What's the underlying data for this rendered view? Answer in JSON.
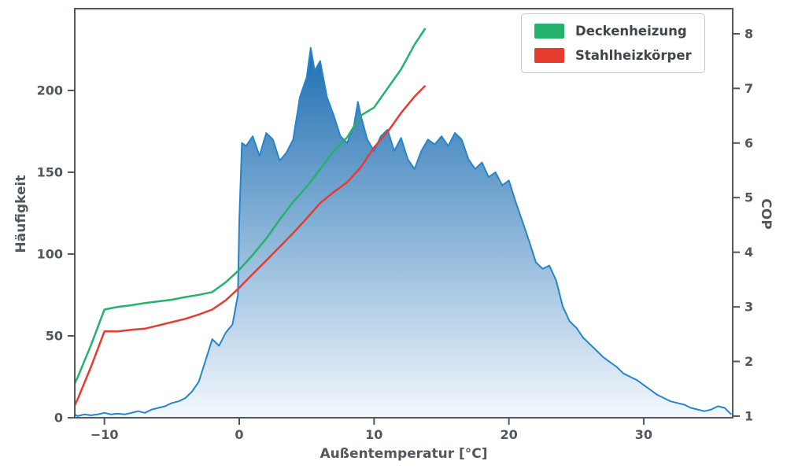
{
  "chart_data": {
    "type": "area+line",
    "title": "",
    "xlabel": "Außentemperatur [°C]",
    "ylabel_left": "Häufigkeit",
    "ylabel_right": "COP",
    "xlim": [
      -12.2,
      36.6
    ],
    "ylim_left": [
      0,
      250
    ],
    "ylim_right": [
      0.97,
      8.46
    ],
    "grid": false,
    "legend_position": "upper right",
    "x_tick_values": [
      -10,
      0,
      10,
      20,
      30
    ],
    "x_tick_labels": [
      "−10",
      "0",
      "10",
      "20",
      "30"
    ],
    "yleft_tick_values": [
      0,
      50,
      100,
      150,
      200
    ],
    "yleft_tick_labels": [
      "0",
      "50",
      "100",
      "150",
      "200"
    ],
    "yright_tick_values": [
      1,
      2,
      3,
      4,
      5,
      6,
      7,
      8
    ],
    "yright_tick_labels": [
      "1",
      "2",
      "3",
      "4",
      "5",
      "6",
      "7",
      "8"
    ],
    "colors": {
      "spine": "#51575d",
      "text": "#51575d",
      "legend_border": "#c9c9c9"
    },
    "histogram": {
      "name": "Häufigkeit",
      "axis": "left",
      "line_color": "#2585cc",
      "fill_top": "#1f6fb2",
      "fill_bottom": "#f3f8fd",
      "x": [
        -12.2,
        -12,
        -11.5,
        -11,
        -10.5,
        -10,
        -9.5,
        -9,
        -8.5,
        -8,
        -7.5,
        -7,
        -6.5,
        -6,
        -5.5,
        -5,
        -4.5,
        -4,
        -3.5,
        -3,
        -2.5,
        -2,
        -1.5,
        -1,
        -0.5,
        -0.1,
        0,
        0.2,
        0.5,
        1,
        1.5,
        2,
        2.5,
        3,
        3.5,
        4,
        4.5,
        5,
        5.3,
        5.6,
        6,
        6.5,
        7,
        7.5,
        8,
        8.5,
        8.8,
        9,
        9.5,
        10,
        10.5,
        11,
        11.5,
        12,
        12.5,
        13,
        13.5,
        14,
        14.5,
        15,
        15.5,
        16,
        16.5,
        17,
        17.5,
        18,
        18.5,
        19,
        19.5,
        20,
        20.5,
        21,
        21.5,
        22,
        22.5,
        23,
        23.5,
        24,
        24.5,
        25,
        25.5,
        26,
        26.5,
        27,
        27.5,
        28,
        28.5,
        29,
        29.5,
        30,
        30.5,
        31,
        31.5,
        32,
        32.5,
        33,
        33.5,
        34,
        34.5,
        35,
        35.5,
        36,
        36.5
      ],
      "y": [
        2,
        1,
        2,
        1.5,
        2,
        3,
        2,
        2.5,
        2,
        3,
        4,
        3,
        5,
        6,
        7,
        9,
        10,
        12,
        16,
        22,
        35,
        48,
        44,
        52,
        57,
        75,
        120,
        168,
        166,
        172,
        160,
        174,
        170,
        157,
        162,
        170,
        196,
        208,
        226,
        212,
        218,
        196,
        185,
        172,
        168,
        178,
        193,
        185,
        170,
        163,
        172,
        176,
        163,
        171,
        158,
        152,
        163,
        170,
        167,
        172,
        166,
        174,
        170,
        158,
        152,
        156,
        147,
        150,
        142,
        145,
        132,
        120,
        108,
        95,
        91,
        93,
        84,
        68,
        59,
        55,
        49,
        45,
        41,
        37,
        34,
        31,
        27,
        25,
        23,
        20,
        17,
        14,
        12,
        10,
        9,
        8,
        6,
        5,
        4,
        5,
        7,
        6,
        2
      ]
    },
    "series": [
      {
        "name": "Deckenheizung",
        "axis": "right",
        "color": "#25b26d",
        "x": [
          -12.2,
          -12,
          -11,
          -10,
          -9,
          -8,
          -7,
          -6,
          -5,
          -4,
          -3,
          -2,
          -1,
          0,
          1,
          2,
          3,
          4,
          5,
          6,
          7,
          8,
          9,
          10,
          11,
          12,
          13,
          13.8
        ],
        "y": [
          1.6,
          1.7,
          2.3,
          2.95,
          3.0,
          3.03,
          3.07,
          3.1,
          3.13,
          3.18,
          3.22,
          3.27,
          3.45,
          3.68,
          3.95,
          4.25,
          4.6,
          4.92,
          5.2,
          5.52,
          5.85,
          6.1,
          6.5,
          6.65,
          7.0,
          7.35,
          7.8,
          8.1
        ]
      },
      {
        "name": "Stahlheizkörper",
        "axis": "right",
        "color": "#e63c30",
        "x": [
          -12.2,
          -12,
          -11,
          -10,
          -9,
          -8,
          -7,
          -6,
          -5,
          -4,
          -3,
          -2,
          -1,
          0,
          1,
          2,
          3,
          4,
          5,
          6,
          7,
          8,
          9,
          10,
          11,
          12,
          13,
          13.8
        ],
        "y": [
          1.2,
          1.3,
          1.9,
          2.55,
          2.55,
          2.58,
          2.6,
          2.66,
          2.72,
          2.78,
          2.86,
          2.95,
          3.12,
          3.35,
          3.6,
          3.85,
          4.1,
          4.35,
          4.62,
          4.9,
          5.1,
          5.28,
          5.55,
          5.92,
          6.2,
          6.55,
          6.85,
          7.05
        ]
      }
    ]
  }
}
